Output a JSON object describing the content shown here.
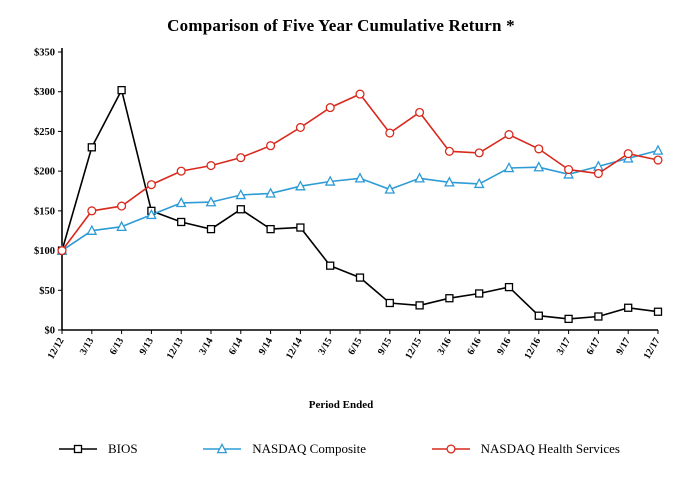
{
  "title": "Comparison of Five Year Cumulative Return *",
  "chart_data": {
    "type": "line",
    "xlabel": "Period Ended",
    "ylabel": "",
    "ylim": [
      0,
      350
    ],
    "yticks": [
      "$0",
      "$50",
      "$100",
      "$150",
      "$200",
      "$250",
      "$300",
      "$350"
    ],
    "grid": false,
    "legend_position": "bottom",
    "categories": [
      "12/12",
      "3/13",
      "6/13",
      "9/13",
      "12/13",
      "3/14",
      "6/14",
      "9/14",
      "12/14",
      "3/15",
      "6/15",
      "9/15",
      "12/15",
      "3/16",
      "6/16",
      "9/16",
      "12/16",
      "3/17",
      "6/17",
      "9/17",
      "12/17"
    ],
    "series": [
      {
        "name": "BIOS",
        "color": "#000000",
        "marker": "square",
        "values": [
          100,
          230,
          302,
          150,
          136,
          127,
          152,
          127,
          129,
          81,
          66,
          34,
          31,
          40,
          46,
          54,
          18,
          14,
          17,
          28,
          23
        ]
      },
      {
        "name": "NASDAQ Composite",
        "color": "#2E9BD5",
        "marker": "triangle",
        "values": [
          100,
          125,
          130,
          145,
          160,
          161,
          170,
          172,
          181,
          187,
          191,
          177,
          191,
          186,
          184,
          204,
          205,
          196,
          206,
          216,
          226
        ]
      },
      {
        "name": "NASDAQ Health Services",
        "color": "#D9291C",
        "marker": "circle",
        "values": [
          100,
          150,
          156,
          183,
          200,
          207,
          217,
          232,
          255,
          280,
          297,
          248,
          274,
          225,
          223,
          246,
          228,
          202,
          197,
          222,
          214
        ]
      }
    ]
  }
}
